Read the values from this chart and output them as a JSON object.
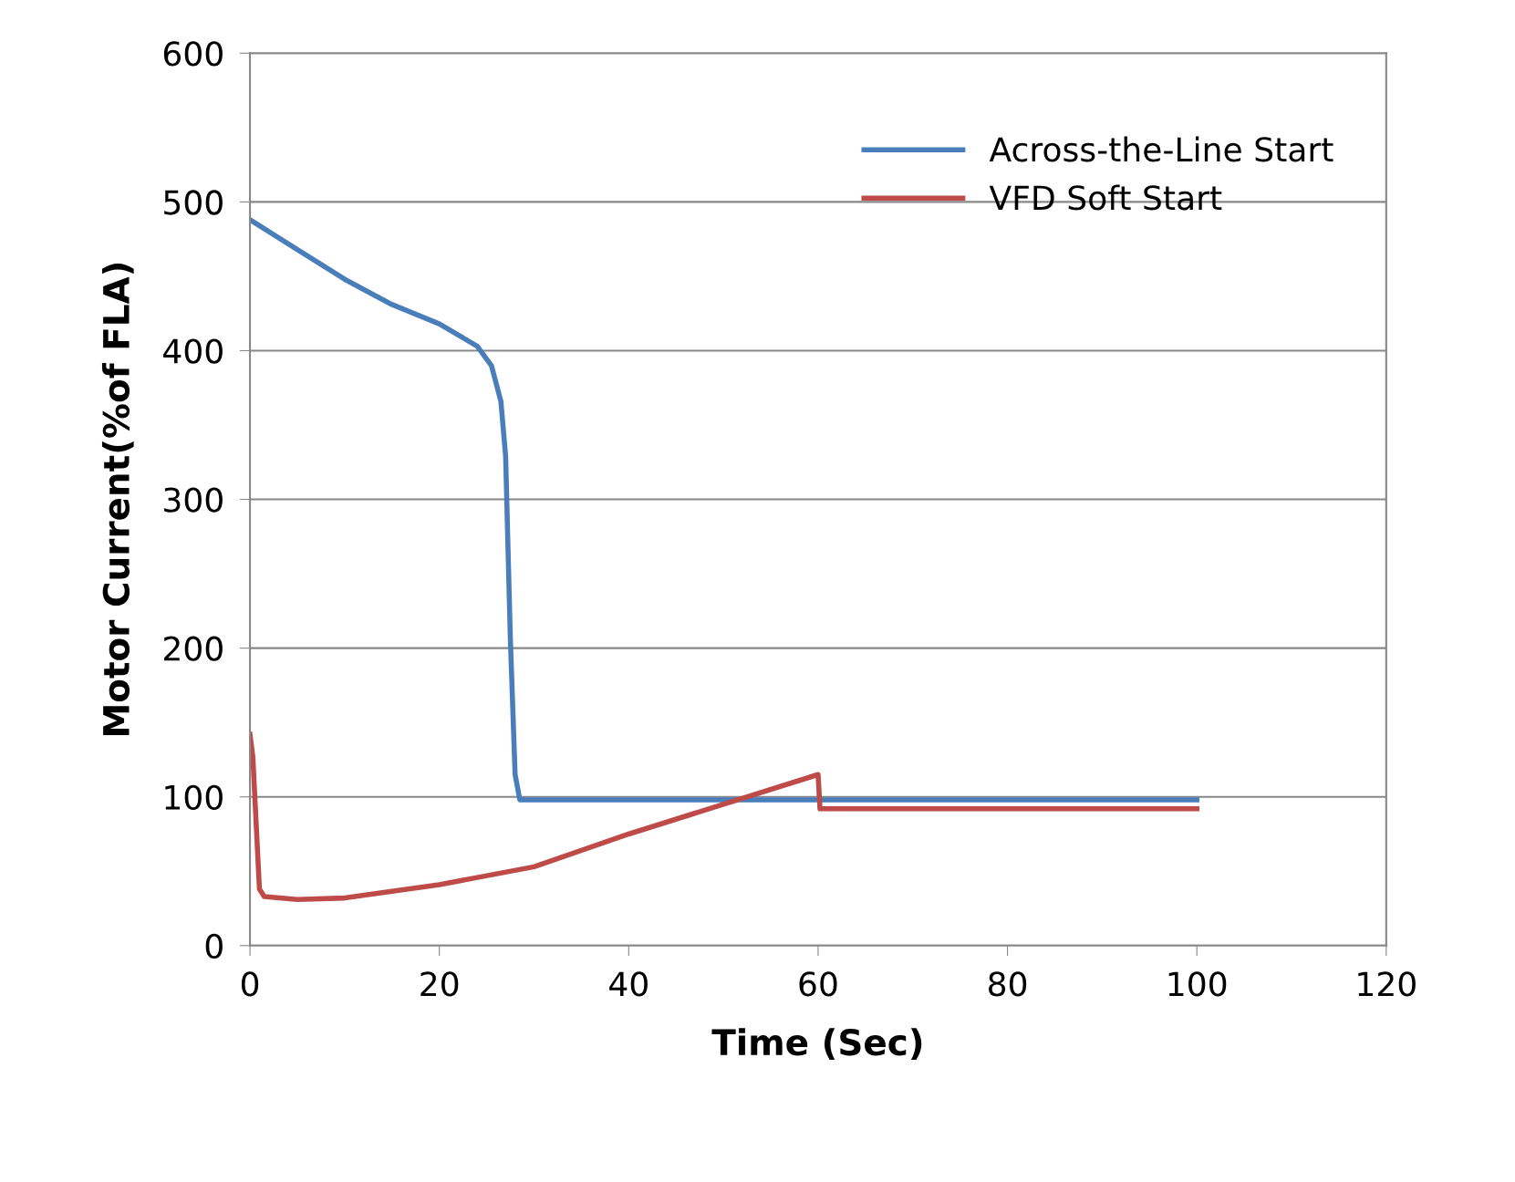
{
  "chart_data": {
    "type": "line",
    "xlabel": "Time (Sec)",
    "ylabel": "Motor Current(%of FLA)",
    "xlim": [
      0,
      120
    ],
    "xticks": [
      0,
      20,
      40,
      60,
      80,
      100,
      120
    ],
    "ylim": [
      0,
      600
    ],
    "yticks": [
      0,
      100,
      200,
      300,
      400,
      500,
      600
    ],
    "grid": "y",
    "legend": "top right",
    "line_style": "solid",
    "marker": "none",
    "series": [
      {
        "name": "Across-the-Line Start",
        "color": "#4a7ebb",
        "x": [
          0,
          5,
          10,
          15,
          20,
          24,
          25.5,
          26.5,
          27,
          27.5,
          28,
          28.5,
          30,
          60,
          100
        ],
        "values": [
          488,
          468,
          448,
          431,
          418,
          403,
          390,
          366,
          329,
          206,
          115,
          98,
          98,
          98,
          98
        ]
      },
      {
        "name": "VFD Soft Start",
        "color": "#be4b48",
        "x": [
          0,
          0.3,
          1,
          1.5,
          5,
          10,
          20,
          30,
          40,
          50,
          60,
          60.2,
          60.5,
          100
        ],
        "values": [
          142,
          127,
          38,
          33,
          31,
          32,
          41,
          53,
          75,
          95,
          115,
          92,
          92,
          92
        ]
      }
    ]
  }
}
